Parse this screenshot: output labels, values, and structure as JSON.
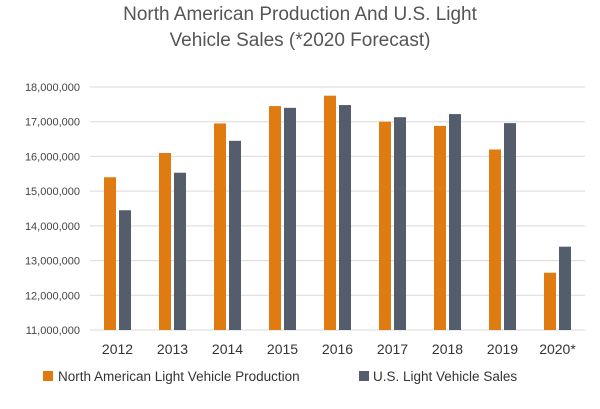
{
  "chart_data": {
    "type": "bar",
    "title_lines": [
      "North American Production And U.S. Light",
      "Vehicle Sales (*2020 Forecast)"
    ],
    "categories": [
      "2012",
      "2013",
      "2014",
      "2015",
      "2016",
      "2017",
      "2018",
      "2019",
      "2020*"
    ],
    "series": [
      {
        "name": "North American Light Vehicle Production",
        "color": "#e07b12",
        "values": [
          15400000,
          16100000,
          16950000,
          17450000,
          17750000,
          17000000,
          16880000,
          16200000,
          12650000
        ]
      },
      {
        "name": "U.S. Light Vehicle Sales",
        "color": "#545d6b",
        "values": [
          14450000,
          15530000,
          16450000,
          17400000,
          17480000,
          17130000,
          17220000,
          16960000,
          13400000
        ]
      }
    ],
    "yticks": [
      "11,000,000",
      "12,000,000",
      "13,000,000",
      "14,000,000",
      "15,000,000",
      "16,000,000",
      "17,000,000",
      "18,000,000"
    ],
    "ylim": [
      11000000,
      18000000
    ],
    "ytick_step": 1000000,
    "xlabel": "",
    "ylabel": "",
    "grid": true,
    "legend_position": "bottom"
  }
}
